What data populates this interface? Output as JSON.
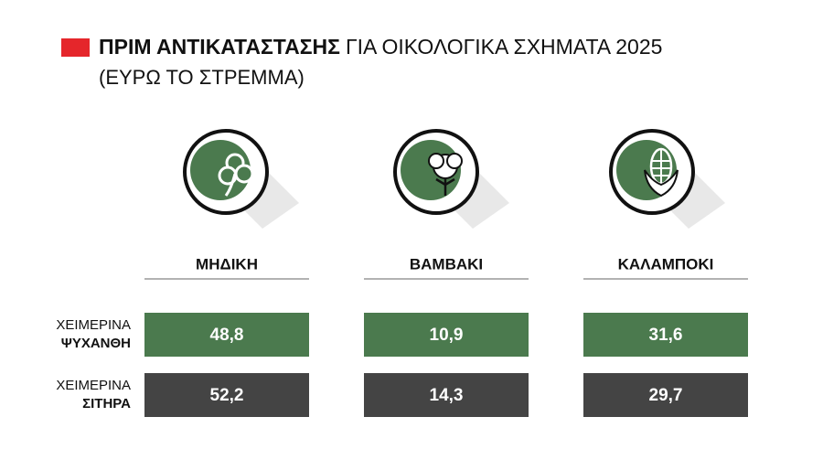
{
  "header": {
    "title_bold": "ΠΡΙΜ ΑΝΤΙΚΑΤΑΣΤΑΣΗΣ",
    "title_rest": "ΓΙΑ ΟΙΚΟΛΟΓΙΚΑ ΣΧΗΜΑΤΑ 2025",
    "subtitle": "(ΕΥΡΩ ΤΟ ΣΤΡΕΜΜΑ)"
  },
  "table": {
    "columns": [
      "ΜΗΔΙΚΗ",
      "ΒΑΜΒΑΚΙ",
      "ΚΑΛΑΜΠΟΚΙ"
    ],
    "rows": [
      {
        "label_top": "ΧΕΙΜΕΡΙΝΑ",
        "label_bottom": "ΨΥΧΑΝΘΗ",
        "cells": [
          "48,8",
          "10,9",
          "31,6"
        ]
      },
      {
        "label_top": "ΧΕΙΜΕΡΙΝΑ",
        "label_bottom": "ΣΙΤΗΡΑ",
        "cells": [
          "52,2",
          "14,3",
          "29,7"
        ]
      }
    ]
  }
}
